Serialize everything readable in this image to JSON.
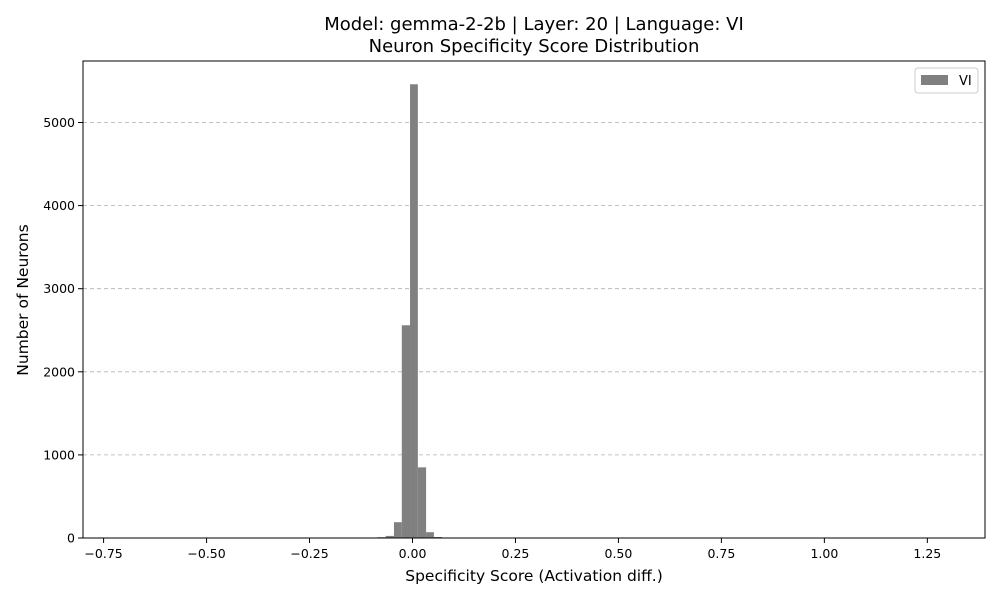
{
  "chart_data": {
    "type": "bar",
    "title": "Model: gemma-2-2b | Layer: 20 | Language: VI",
    "subtitle": "Neuron Specificity Score Distribution",
    "xlabel": "Specificity Score (Activation diff.)",
    "ylabel": "Number of Neurons",
    "xlim": [
      -0.8,
      1.39
    ],
    "ylim": [
      0,
      5740
    ],
    "x_ticks": [
      -0.75,
      -0.5,
      -0.25,
      0.0,
      0.25,
      0.5,
      0.75,
      1.0,
      1.25
    ],
    "x_tick_labels": [
      "−0.75",
      "−0.50",
      "−0.25",
      "0.00",
      "0.25",
      "0.50",
      "0.75",
      "1.00",
      "1.25"
    ],
    "y_ticks": [
      0,
      1000,
      2000,
      3000,
      4000,
      5000
    ],
    "y_tick_labels": [
      "0",
      "1000",
      "2000",
      "3000",
      "4000",
      "5000"
    ],
    "grid": "y-dashed",
    "legend_position": "top-right",
    "bar_color": "#808080",
    "series": [
      {
        "name": "VI",
        "bins": [
          {
            "x0": -0.125,
            "x1": -0.105,
            "count": 4
          },
          {
            "x0": -0.105,
            "x1": -0.085,
            "count": 6
          },
          {
            "x0": -0.085,
            "x1": -0.065,
            "count": 10
          },
          {
            "x0": -0.065,
            "x1": -0.045,
            "count": 25
          },
          {
            "x0": -0.045,
            "x1": -0.026,
            "count": 190
          },
          {
            "x0": -0.026,
            "x1": -0.006,
            "count": 2560
          },
          {
            "x0": -0.006,
            "x1": 0.013,
            "count": 5460
          },
          {
            "x0": 0.013,
            "x1": 0.033,
            "count": 850
          },
          {
            "x0": 0.033,
            "x1": 0.052,
            "count": 70
          },
          {
            "x0": 0.052,
            "x1": 0.072,
            "count": 12
          },
          {
            "x0": 0.072,
            "x1": 0.092,
            "count": 6
          },
          {
            "x0": 0.092,
            "x1": 0.111,
            "count": 3
          }
        ]
      }
    ]
  }
}
